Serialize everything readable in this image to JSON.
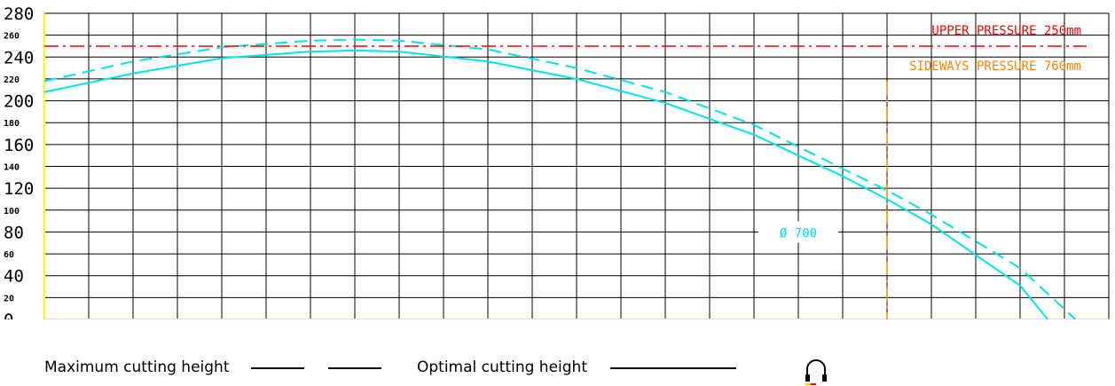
{
  "chart_data": {
    "type": "line",
    "title": "",
    "xlabel": "",
    "ylabel": "",
    "xlim": [
      0,
      960
    ],
    "ylim": [
      0,
      280
    ],
    "x_ticks_major": [
      "0",
      "80",
      "160",
      "240",
      "320",
      "400",
      "480",
      "560",
      "640",
      "720",
      "800",
      "880",
      "960"
    ],
    "x_ticks_minor": [
      "40",
      "120",
      "200",
      "280",
      "360",
      "440",
      "520",
      "600",
      "680",
      "760",
      "840",
      "920"
    ],
    "y_ticks_major": [
      "0",
      "40",
      "80",
      "120",
      "160",
      "200",
      "240",
      "280"
    ],
    "y_ticks_minor": [
      "20",
      "60",
      "100",
      "140",
      "180",
      "220",
      "260"
    ],
    "grid": true,
    "series": [
      {
        "name": "Maximum cutting height",
        "style": "dashed",
        "color": "#00e5e5",
        "x": [
          0,
          80,
          160,
          240,
          280,
          320,
          400,
          480,
          560,
          640,
          720,
          760,
          800,
          880,
          930
        ],
        "y": [
          218,
          236,
          249,
          255,
          256,
          255,
          247,
          230,
          208,
          178,
          138,
          118,
          96,
          47,
          0
        ]
      },
      {
        "name": "Optimal cutting height",
        "style": "solid",
        "color": "#00e5e5",
        "x": [
          0,
          80,
          160,
          240,
          280,
          320,
          400,
          480,
          560,
          640,
          720,
          760,
          800,
          880,
          905
        ],
        "y": [
          208,
          225,
          239,
          245,
          246,
          245,
          236,
          220,
          198,
          169,
          131,
          110,
          87,
          31,
          0
        ]
      }
    ],
    "reference_lines": [
      {
        "axis": "y",
        "value": 250,
        "label": "UPPER PRESSURE 250mm",
        "color": "#ff0000",
        "style": "dash-dot"
      },
      {
        "axis": "x",
        "value": 760,
        "label": "SIDEWAYS PRESSURE 760mm",
        "color": "#ff8000",
        "style": "dash-dot"
      }
    ],
    "annotations": [
      {
        "text": "Ø 700",
        "x": 720,
        "y": 80,
        "color": "#00e5e5"
      }
    ]
  },
  "legend": {
    "max_label": "Maximum cutting height",
    "opt_label": "Optimal cutting height"
  },
  "colors": {
    "grid": "#000000",
    "axis": "#ffff00",
    "curve": "#00e5e5",
    "upper": "#ff0000",
    "sideways": "#ff8000"
  },
  "icons": {
    "corner": "headphones-icon"
  }
}
